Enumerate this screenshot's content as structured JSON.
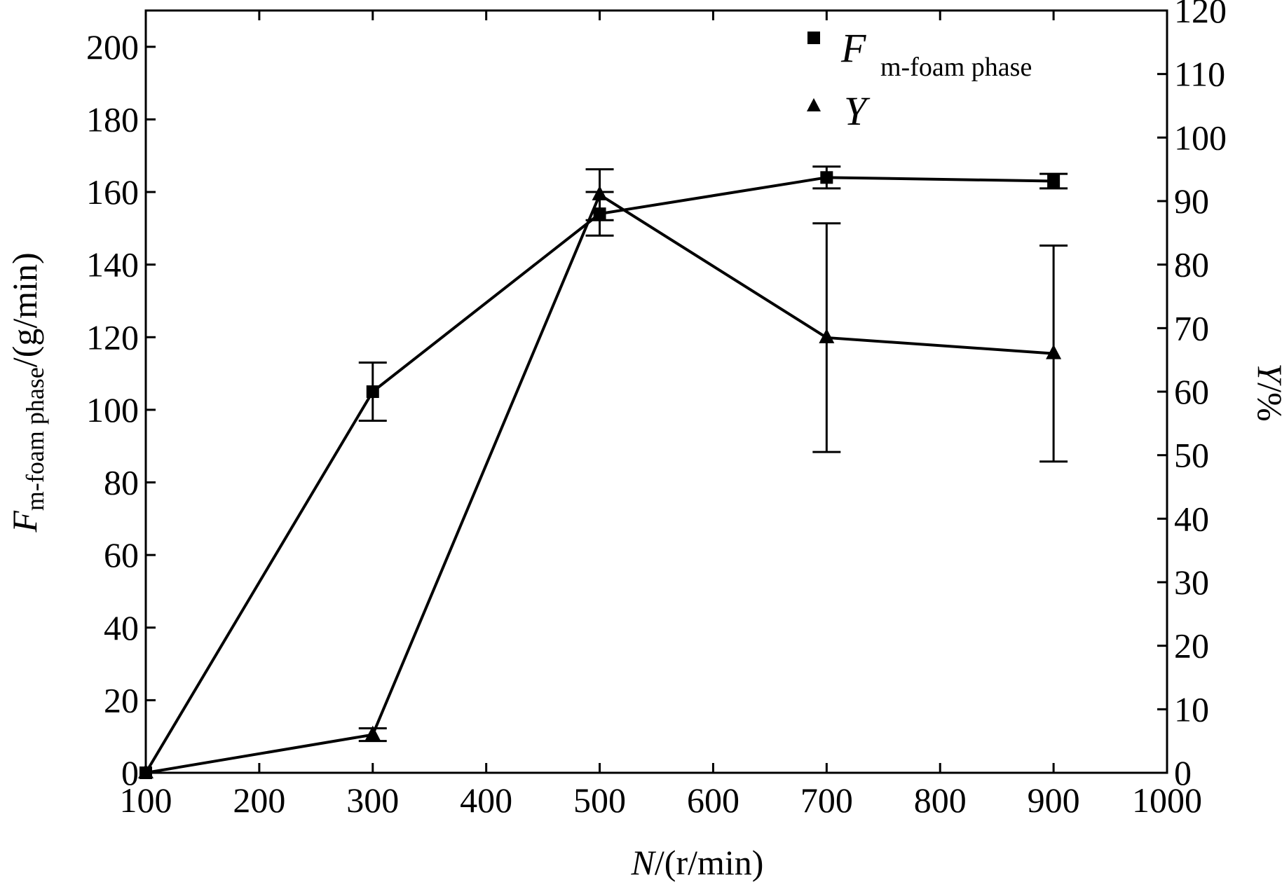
{
  "chart_data": {
    "type": "line",
    "xlabel": {
      "symbol": "N",
      "rest": "/(r/min)"
    },
    "ylabel_left": {
      "symbol": "F",
      "subscript": "m-foam phase",
      "rest": "/(g/min)"
    },
    "ylabel_right": {
      "symbol": "Y",
      "rest": "/%"
    },
    "xlim": [
      100,
      1000
    ],
    "ylim_left": [
      0,
      210
    ],
    "ylim_right": [
      0,
      120
    ],
    "x_ticks": [
      100,
      200,
      300,
      400,
      500,
      600,
      700,
      800,
      900,
      1000
    ],
    "y_left_ticks": [
      0,
      20,
      40,
      60,
      80,
      100,
      120,
      140,
      160,
      180,
      200
    ],
    "y_right_ticks": [
      0,
      10,
      20,
      30,
      40,
      50,
      60,
      70,
      80,
      90,
      100,
      110,
      120
    ],
    "grid": false,
    "legend_position": "top-right",
    "series": [
      {
        "name": "F",
        "name_subscript": "m-foam phase",
        "axis": "left",
        "marker": "square",
        "x": [
          100,
          300,
          500,
          700,
          900
        ],
        "y": [
          0,
          105,
          154,
          164,
          163
        ],
        "error": [
          0,
          8,
          6,
          3,
          2
        ]
      },
      {
        "name": "Y",
        "axis": "right",
        "marker": "triangle",
        "x": [
          100,
          300,
          500,
          700,
          900
        ],
        "y": [
          0,
          6,
          91,
          68.5,
          66
        ],
        "error": [
          0,
          1,
          4,
          18,
          17
        ]
      }
    ]
  }
}
